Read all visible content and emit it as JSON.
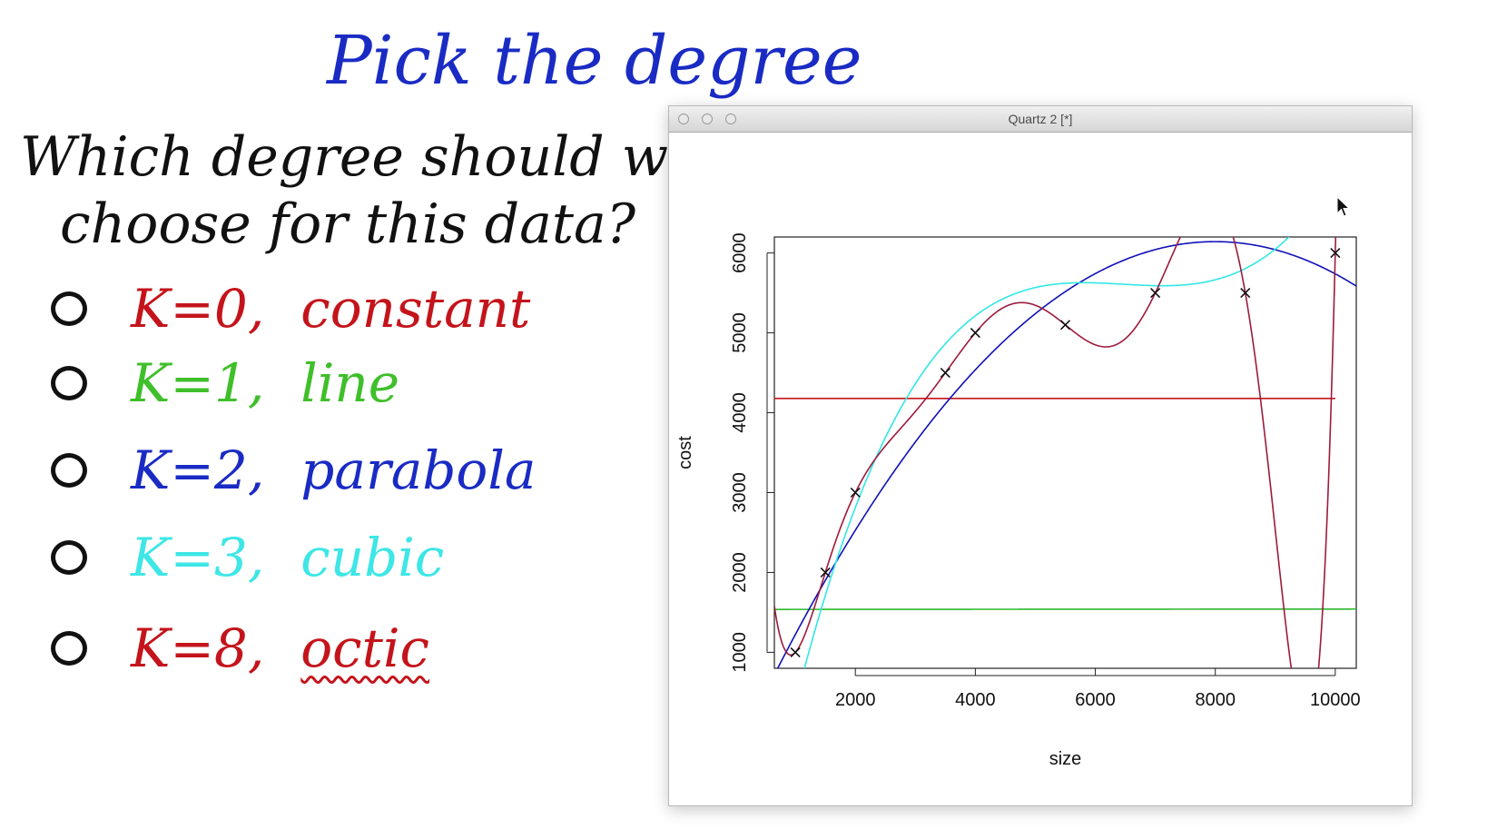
{
  "title": "Pick the degree",
  "question": {
    "line1": "Which degree should we",
    "line2": "choose for this data?"
  },
  "options": [
    {
      "k": "K=0,",
      "name": "constant",
      "color": "#c4141b"
    },
    {
      "k": "K=1,",
      "name": "line",
      "color": "#3fbf2a"
    },
    {
      "k": "K=2,",
      "name": "parabola",
      "color": "#1a2bc4"
    },
    {
      "k": "K=3,",
      "name": "cubic",
      "color": "#3ee6e6"
    },
    {
      "k": "K=8,",
      "name": "octic",
      "color": "#c4141b"
    }
  ],
  "window": {
    "title": "Quartz 2 [*]"
  },
  "chart_data": {
    "type": "scatter",
    "xlabel": "size",
    "ylabel": "cost",
    "xlim": [
      650,
      10350
    ],
    "ylim": [
      800,
      6200
    ],
    "xticks": [
      2000,
      4000,
      6000,
      8000,
      10000
    ],
    "yticks": [
      1000,
      2000,
      3000,
      4000,
      5000,
      6000
    ],
    "points": [
      {
        "x": 1000,
        "y": 1000
      },
      {
        "x": 1500,
        "y": 2000
      },
      {
        "x": 2000,
        "y": 3000
      },
      {
        "x": 3500,
        "y": 4500
      },
      {
        "x": 4000,
        "y": 5000
      },
      {
        "x": 5500,
        "y": 5100
      },
      {
        "x": 7000,
        "y": 5500
      },
      {
        "x": 8500,
        "y": 5500
      },
      {
        "x": 10000,
        "y": 6000
      }
    ],
    "marker": "x",
    "series": [
      {
        "key": "constant",
        "color": "#c4141b",
        "coef": [
          4178
        ]
      },
      {
        "key": "line",
        "color": "#2db82d",
        "coef": [
          1537,
          0.45
        ]
      },
      {
        "key": "parabola",
        "color": "#1010b8",
        "coef": [
          -283.76,
          1607.2,
          -100.5
        ]
      },
      {
        "key": "cubic",
        "color": "#33e6e6",
        "coef": [
          -3189.72,
          4171.15,
          -652.17,
          33.64
        ]
      },
      {
        "key": "octic",
        "color": "#9c1b3c",
        "coef": null
      }
    ]
  }
}
